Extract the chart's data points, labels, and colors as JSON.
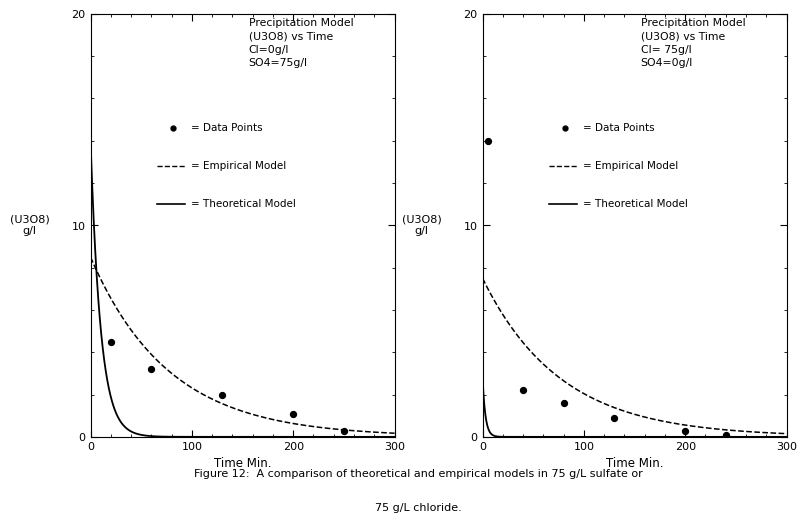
{
  "fig_width": 8.0,
  "fig_height": 5.64,
  "bg_color": "#ffffff",
  "left_plot": {
    "title_lines": [
      "Precipitation Model",
      "(U3O8) vs Time",
      "Cl=0g/l",
      "SO4=75g/l"
    ],
    "ylabel": "(U3O8)\ng/l",
    "xlabel": "Time Min.",
    "xlim": [
      0,
      300
    ],
    "ylim": [
      0,
      20
    ],
    "yticks": [
      0,
      10,
      20
    ],
    "xticks": [
      0,
      100,
      200,
      300
    ],
    "data_points_x": [
      20,
      60,
      130,
      200,
      250
    ],
    "data_points_y": [
      4.5,
      3.2,
      2.0,
      1.1,
      0.3
    ],
    "empirical_A": 8.5,
    "empirical_k": 0.013,
    "theoretical_A": 14.0,
    "theoretical_k": 0.1
  },
  "right_plot": {
    "title_lines": [
      "Precipitation Model",
      "(U3O8) vs Time",
      "Cl= 75g/l",
      "SO4=0g/l"
    ],
    "ylabel": "(U3O8)\ng/l",
    "xlabel": "Time Min.",
    "xlim": [
      0,
      300
    ],
    "ylim": [
      0,
      20
    ],
    "yticks": [
      0,
      10,
      20
    ],
    "xticks": [
      0,
      100,
      200,
      300
    ],
    "data_points_x": [
      5,
      40,
      80,
      130,
      200,
      240
    ],
    "data_points_y": [
      14.0,
      2.2,
      1.6,
      0.9,
      0.3,
      0.1
    ],
    "empirical_A": 7.5,
    "empirical_k": 0.013,
    "theoretical_A": 2.8,
    "theoretical_k": 0.35
  },
  "legend_dot_label": "= Data Points",
  "legend_dashed_label": "= Empirical Model",
  "legend_solid_label": "= Theoretical Model",
  "line_color": "#000000",
  "dot_color": "#000000",
  "caption_line1": "Figure 12:  A comparison of theoretical and empirical models in 75 g/L sulfate or",
  "caption_line2": "75 g/L chloride."
}
